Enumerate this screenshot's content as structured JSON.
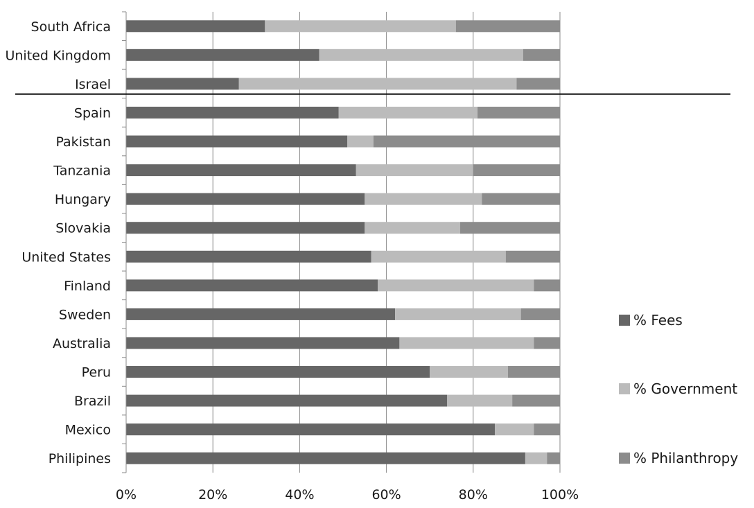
{
  "chart_data": {
    "type": "bar",
    "orientation": "horizontal",
    "stacked": "percent",
    "categories": [
      "South Africa",
      "United Kingdom",
      "Israel",
      "Spain",
      "Pakistan",
      "Tanzania",
      "Hungary",
      "Slovakia",
      "United States",
      "Finland",
      "Sweden",
      "Australia",
      "Peru",
      "Brazil",
      "Mexico",
      "Philipines"
    ],
    "series": [
      {
        "name": "% Fees",
        "color": "#666666",
        "values": [
          32,
          44.5,
          26,
          49,
          51,
          53,
          55,
          55,
          56.5,
          58,
          62,
          63,
          70,
          74,
          85,
          92
        ]
      },
      {
        "name": "% Government",
        "color": "#bbbbbb",
        "values": [
          44,
          47,
          64,
          32,
          6,
          27,
          27,
          22,
          31,
          36,
          29,
          31,
          18,
          15,
          9,
          5
        ]
      },
      {
        "name": "% Philanthropy",
        "color": "#8c8c8c",
        "values": [
          24,
          8.5,
          10,
          19,
          43,
          20,
          18,
          23,
          12.5,
          6,
          9,
          6,
          12,
          11,
          6,
          3
        ]
      }
    ],
    "x_ticks": [
      "0%",
      "20%",
      "40%",
      "60%",
      "80%",
      "100%"
    ],
    "xlim": [
      0,
      100
    ],
    "grid": "vertical",
    "legend_position": "right",
    "separator_after": "Israel"
  }
}
